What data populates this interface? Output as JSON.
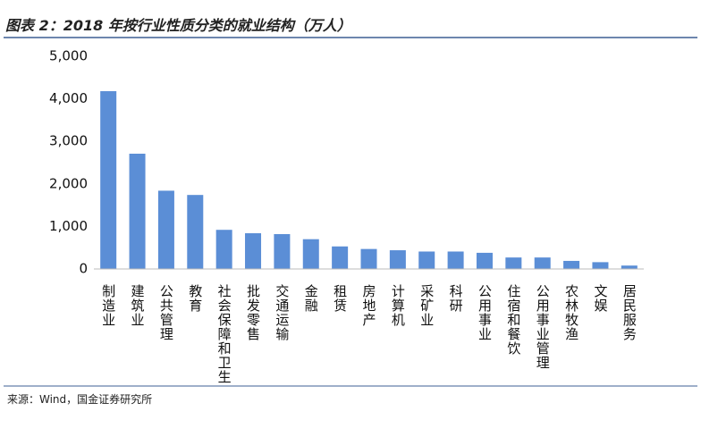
{
  "chart_data": {
    "type": "bar",
    "title": "图表 2：2018 年按行业性质分类的就业结构（万人）",
    "source": "来源：Wind，国金证券研究所",
    "categories": [
      "制造业",
      "建筑业",
      "公共管理",
      "教育",
      "社会保障和卫生",
      "批发零售",
      "交通运输",
      "金融",
      "租赁",
      "房地产",
      "计算机",
      "采矿业",
      "科研",
      "公用事业",
      "住宿和餐饮",
      "公用事业管理",
      "农林牧渔",
      "文娱",
      "居民服务"
    ],
    "values": [
      4180,
      2710,
      1840,
      1740,
      920,
      840,
      820,
      700,
      530,
      470,
      440,
      410,
      410,
      380,
      270,
      270,
      190,
      160,
      80
    ],
    "color": "#5b8ed6",
    "ylim": [
      0,
      5000
    ],
    "yticks": [
      0,
      {
        "value": 1000,
        "label": "1,000"
      },
      {
        "value": 2000,
        "label": "2,000"
      },
      {
        "value": 3000,
        "label": "3,000"
      },
      {
        "value": 4000,
        "label": "4,000"
      },
      {
        "value": 5000,
        "label": "5,000"
      }
    ],
    "grid": false
  }
}
